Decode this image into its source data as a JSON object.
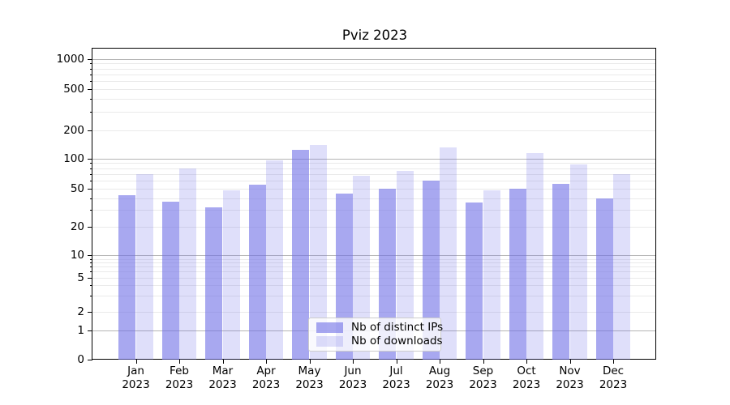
{
  "figure": {
    "background": "#ffffff"
  },
  "chart_data": {
    "type": "bar",
    "title": "Pviz 2023",
    "categories": [
      "Jan 2023",
      "Feb 2023",
      "Mar 2023",
      "Apr 2023",
      "May 2023",
      "Jun 2023",
      "Jul 2023",
      "Aug 2023",
      "Sep 2023",
      "Oct 2023",
      "Nov 2023",
      "Dec 2023"
    ],
    "series": [
      {
        "name": "Nb of distinct IPs",
        "color": "rgba(110,110,230,0.6)",
        "values": [
          43,
          37,
          32,
          55,
          123,
          45,
          50,
          60,
          36,
          50,
          56,
          40
        ]
      },
      {
        "name": "Nb of downloads",
        "color": "rgba(110,110,230,0.22)",
        "values": [
          70,
          80,
          48,
          96,
          139,
          67,
          75,
          130,
          48,
          115,
          88,
          70
        ]
      }
    ],
    "xlabel": "",
    "ylabel": "",
    "yscale": "symlog",
    "yticks": [
      0,
      1,
      2,
      5,
      10,
      20,
      50,
      100,
      200,
      500,
      1000
    ],
    "ylim": [
      0,
      1300
    ],
    "grid": true,
    "grid_major_at": [
      1,
      10,
      100,
      1000
    ],
    "legend_position": "lower center"
  },
  "colors": {
    "grid_major": "#b4b4b4",
    "grid_minor": "#eaeaea",
    "spine": "#000000",
    "text": "#000000"
  }
}
